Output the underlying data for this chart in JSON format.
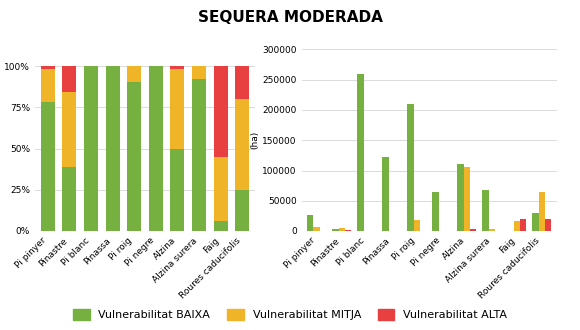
{
  "title": "SEQUERA MODERADA",
  "categories": [
    "Pi pinyer",
    "Pinastre",
    "Pi blanc",
    "Pinassa",
    "Pi roig",
    "Pi negre",
    "Alzina",
    "Alzina surera",
    "Faig",
    "Roures caducifolis"
  ],
  "pct_baixa": [
    78,
    39,
    100,
    100,
    90,
    100,
    50,
    92,
    6,
    25
  ],
  "pct_mitja": [
    20,
    45,
    0,
    0,
    10,
    0,
    48,
    8,
    39,
    55
  ],
  "pct_alta": [
    2,
    16,
    0,
    0,
    0,
    0,
    2,
    0,
    55,
    20
  ],
  "ha_baixa": [
    26000,
    3000,
    260000,
    122000,
    210000,
    65000,
    110000,
    68000,
    500,
    30000
  ],
  "ha_mitja": [
    7000,
    5000,
    0,
    0,
    18000,
    0,
    105000,
    4000,
    17000,
    65000
  ],
  "ha_alta": [
    0,
    1000,
    0,
    0,
    0,
    0,
    3000,
    0,
    20000,
    20000
  ],
  "color_baixa": "#76b041",
  "color_mitja": "#f0b428",
  "color_alta": "#e84040",
  "legend_baixa": "Vulnerabilitat BAIXA",
  "legend_mitja": "Vulnerabilitat MITJA",
  "legend_alta": "Vulnerabilitat ALTA",
  "ylabel_right": "(ha)",
  "ylim_right": [
    0,
    300000
  ],
  "yticks_right": [
    0,
    50000,
    100000,
    150000,
    200000,
    250000,
    300000
  ],
  "background_color": "#ffffff",
  "title_fontsize": 11,
  "tick_fontsize": 6.5,
  "legend_fontsize": 8
}
